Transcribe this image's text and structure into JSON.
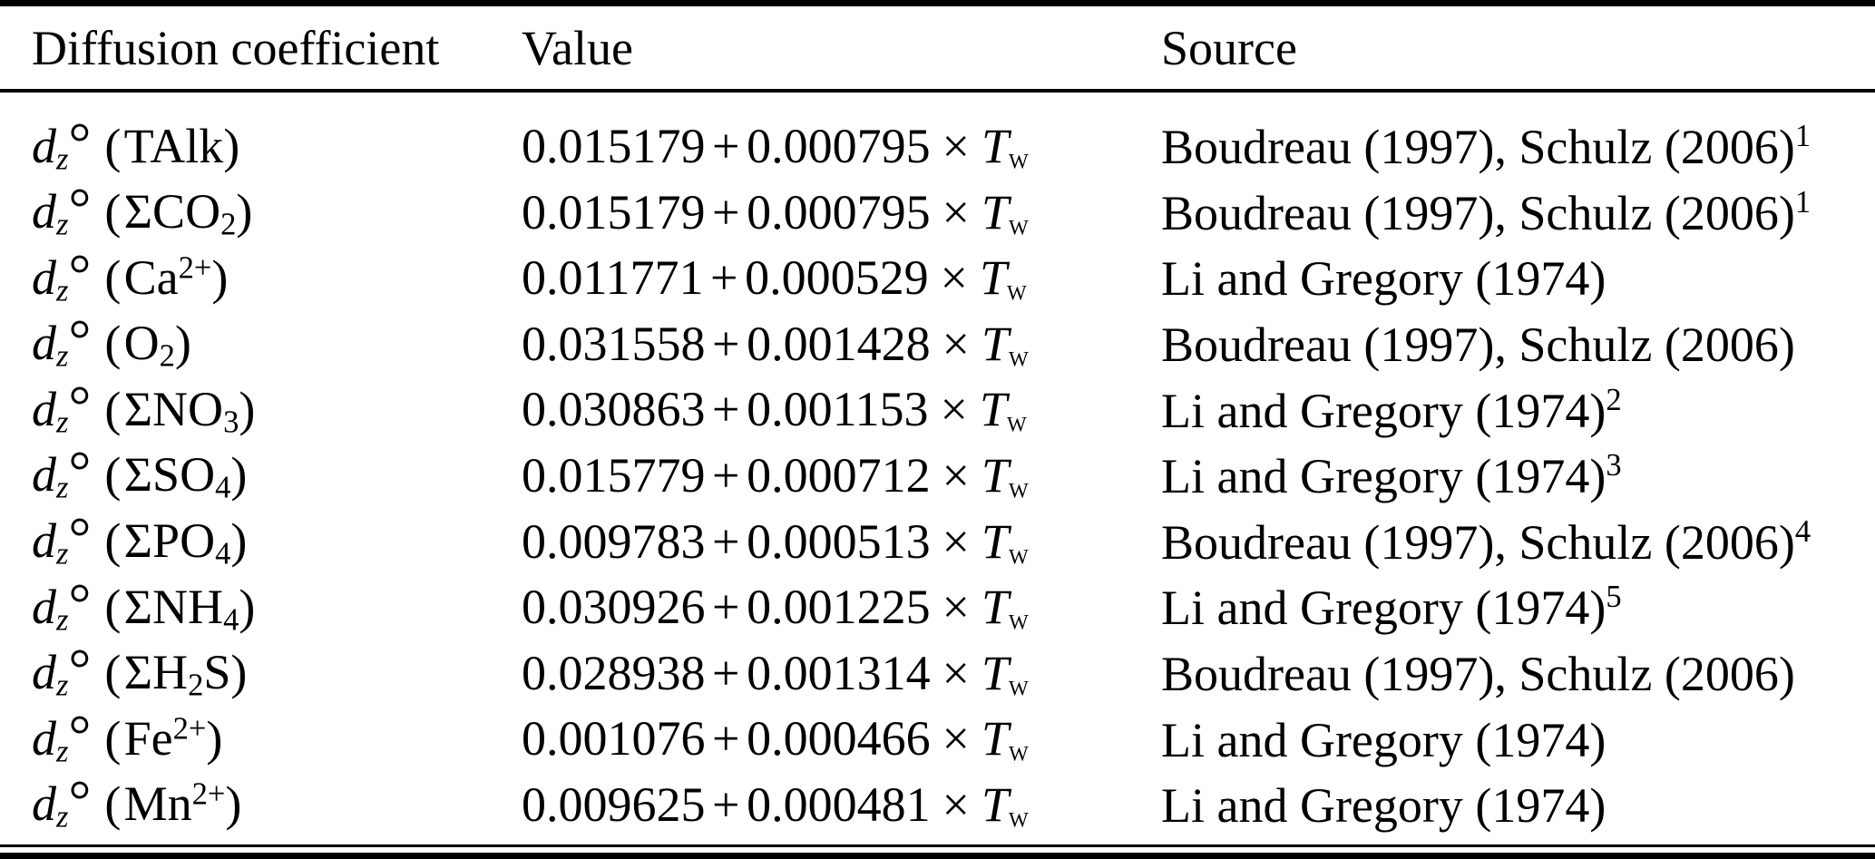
{
  "table": {
    "headers": {
      "coefficient": "Diffusion coefficient",
      "value": "Value",
      "source": "Source"
    },
    "symbols": {
      "d": "d",
      "z": "z",
      "degree": "°",
      "open_paren": "(",
      "close_paren": ")",
      "plus": "+",
      "times": "×",
      "temp_var": "T",
      "temp_sub": "w"
    },
    "rows": [
      {
        "species": {
          "main": "TAlk",
          "sub": "",
          "sup": "",
          "tail": ""
        },
        "value": {
          "a": "0.015179",
          "b": "0.000795"
        },
        "source": {
          "text": "Boudreau (1997), Schulz (2006)",
          "note": "1"
        }
      },
      {
        "species": {
          "main": "ΣCO",
          "sub": "2",
          "sup": "",
          "tail": ""
        },
        "value": {
          "a": "0.015179",
          "b": "0.000795"
        },
        "source": {
          "text": "Boudreau (1997), Schulz (2006)",
          "note": "1"
        }
      },
      {
        "species": {
          "main": "Ca",
          "sub": "",
          "sup": "2+",
          "tail": ""
        },
        "value": {
          "a": "0.011771",
          "b": "0.000529"
        },
        "source": {
          "text": "Li and Gregory (1974)",
          "note": ""
        }
      },
      {
        "species": {
          "main": "O",
          "sub": "2",
          "sup": "",
          "tail": ""
        },
        "value": {
          "a": "0.031558",
          "b": "0.001428"
        },
        "source": {
          "text": "Boudreau (1997), Schulz (2006)",
          "note": ""
        }
      },
      {
        "species": {
          "main": "ΣNO",
          "sub": "3",
          "sup": "",
          "tail": ""
        },
        "value": {
          "a": "0.030863",
          "b": "0.001153"
        },
        "source": {
          "text": "Li and Gregory (1974)",
          "note": "2"
        }
      },
      {
        "species": {
          "main": "ΣSO",
          "sub": "4",
          "sup": "",
          "tail": ""
        },
        "value": {
          "a": "0.015779",
          "b": "0.000712"
        },
        "source": {
          "text": "Li and Gregory (1974)",
          "note": "3"
        }
      },
      {
        "species": {
          "main": "ΣPO",
          "sub": "4",
          "sup": "",
          "tail": ""
        },
        "value": {
          "a": "0.009783",
          "b": "0.000513"
        },
        "source": {
          "text": "Boudreau (1997), Schulz (2006)",
          "note": "4"
        }
      },
      {
        "species": {
          "main": "ΣNH",
          "sub": "4",
          "sup": "",
          "tail": ""
        },
        "value": {
          "a": "0.030926",
          "b": "0.001225"
        },
        "source": {
          "text": "Li and Gregory (1974)",
          "note": "5"
        }
      },
      {
        "species": {
          "main": "ΣH",
          "sub": "2",
          "sup": "",
          "tail": "S"
        },
        "value": {
          "a": "0.028938",
          "b": "0.001314"
        },
        "source": {
          "text": "Boudreau (1997), Schulz (2006)",
          "note": ""
        }
      },
      {
        "species": {
          "main": "Fe",
          "sub": "",
          "sup": "2+",
          "tail": ""
        },
        "value": {
          "a": "0.001076",
          "b": "0.000466"
        },
        "source": {
          "text": "Li and Gregory (1974)",
          "note": ""
        }
      },
      {
        "species": {
          "main": "Mn",
          "sub": "",
          "sup": "2+",
          "tail": ""
        },
        "value": {
          "a": "0.009625",
          "b": "0.000481"
        },
        "source": {
          "text": "Li and Gregory (1974)",
          "note": ""
        }
      }
    ]
  }
}
